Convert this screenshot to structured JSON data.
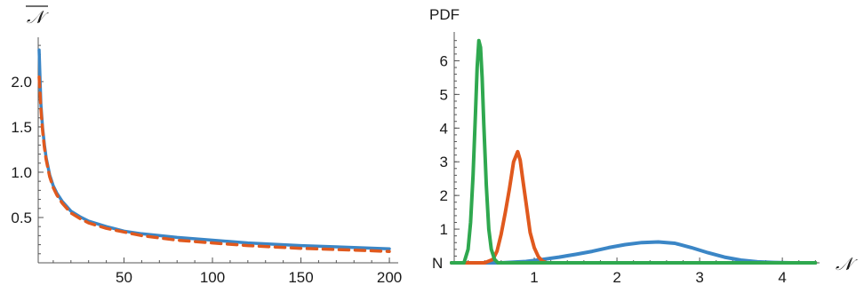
{
  "chart_data": [
    {
      "type": "line",
      "ylabel": "𝒩",
      "xlabel": "",
      "xlim": [
        0,
        205
      ],
      "ylim": [
        0,
        2.45
      ],
      "xticks": [
        50,
        100,
        150,
        200
      ],
      "yticks": [
        0.5,
        1.0,
        1.5,
        2.0
      ],
      "xtick_labels": [
        "50",
        "100",
        "150",
        "200"
      ],
      "ytick_labels": [
        "0.5",
        "1.0",
        "1.5",
        "2.0"
      ],
      "series": [
        {
          "color": "#3b86c6",
          "style": "solid",
          "x": [
            2,
            3,
            4,
            5,
            6,
            8,
            10,
            12,
            15,
            20,
            25,
            30,
            40,
            50,
            60,
            80,
            100,
            120,
            150,
            180,
            200
          ],
          "y": [
            2.35,
            1.75,
            1.48,
            1.3,
            1.16,
            0.97,
            0.85,
            0.77,
            0.68,
            0.57,
            0.51,
            0.46,
            0.4,
            0.35,
            0.32,
            0.28,
            0.25,
            0.22,
            0.19,
            0.17,
            0.155
          ]
        },
        {
          "color": "#e0591e",
          "style": "dashed",
          "x": [
            2,
            3,
            4,
            5,
            6,
            8,
            10,
            12,
            15,
            20,
            25,
            30,
            40,
            50,
            60,
            80,
            100,
            120,
            150,
            180,
            200
          ],
          "y": [
            2.05,
            1.7,
            1.45,
            1.27,
            1.14,
            0.95,
            0.83,
            0.75,
            0.66,
            0.55,
            0.49,
            0.44,
            0.38,
            0.34,
            0.3,
            0.25,
            0.22,
            0.19,
            0.16,
            0.14,
            0.125
          ]
        }
      ]
    },
    {
      "type": "line",
      "ylabel": "PDF",
      "xlabel": "𝒩",
      "y_origin_label": "N",
      "xlim": [
        0,
        4.45
      ],
      "ylim": [
        0,
        6.75
      ],
      "xticks": [
        1,
        2,
        3,
        4
      ],
      "yticks": [
        1,
        2,
        3,
        4,
        5,
        6
      ],
      "xtick_labels": [
        "1",
        "2",
        "3",
        "4"
      ],
      "ytick_labels": [
        "1",
        "2",
        "3",
        "4",
        "5",
        "6"
      ],
      "series": [
        {
          "color": "#3b86c6",
          "x": [
            0.0,
            0.6,
            0.9,
            1.1,
            1.3,
            1.5,
            1.7,
            1.9,
            2.1,
            2.3,
            2.5,
            2.7,
            2.9,
            3.1,
            3.3,
            3.5,
            3.7,
            3.9,
            4.1,
            4.4
          ],
          "y": [
            0.0,
            0.0,
            0.04,
            0.1,
            0.17,
            0.25,
            0.34,
            0.45,
            0.54,
            0.6,
            0.62,
            0.58,
            0.45,
            0.3,
            0.17,
            0.08,
            0.03,
            0.01,
            0.0,
            0.0
          ]
        },
        {
          "color": "#e0591e",
          "x": [
            0.0,
            0.4,
            0.5,
            0.55,
            0.6,
            0.65,
            0.7,
            0.75,
            0.8,
            0.83,
            0.86,
            0.9,
            0.95,
            1.0,
            1.05,
            1.1,
            1.15,
            4.4
          ],
          "y": [
            0.0,
            0.0,
            0.1,
            0.35,
            0.85,
            1.5,
            2.2,
            3.0,
            3.3,
            3.05,
            2.5,
            1.8,
            0.9,
            0.45,
            0.18,
            0.05,
            0.0,
            0.0
          ]
        },
        {
          "color": "#2fa84f",
          "x": [
            0.0,
            0.15,
            0.2,
            0.23,
            0.26,
            0.29,
            0.31,
            0.33,
            0.35,
            0.37,
            0.39,
            0.42,
            0.45,
            0.48,
            0.52,
            0.56,
            4.4
          ],
          "y": [
            0.0,
            0.0,
            0.4,
            1.2,
            2.6,
            4.5,
            5.8,
            6.6,
            6.4,
            5.5,
            4.1,
            2.3,
            1.0,
            0.4,
            0.1,
            0.0,
            0.0
          ]
        }
      ]
    }
  ]
}
